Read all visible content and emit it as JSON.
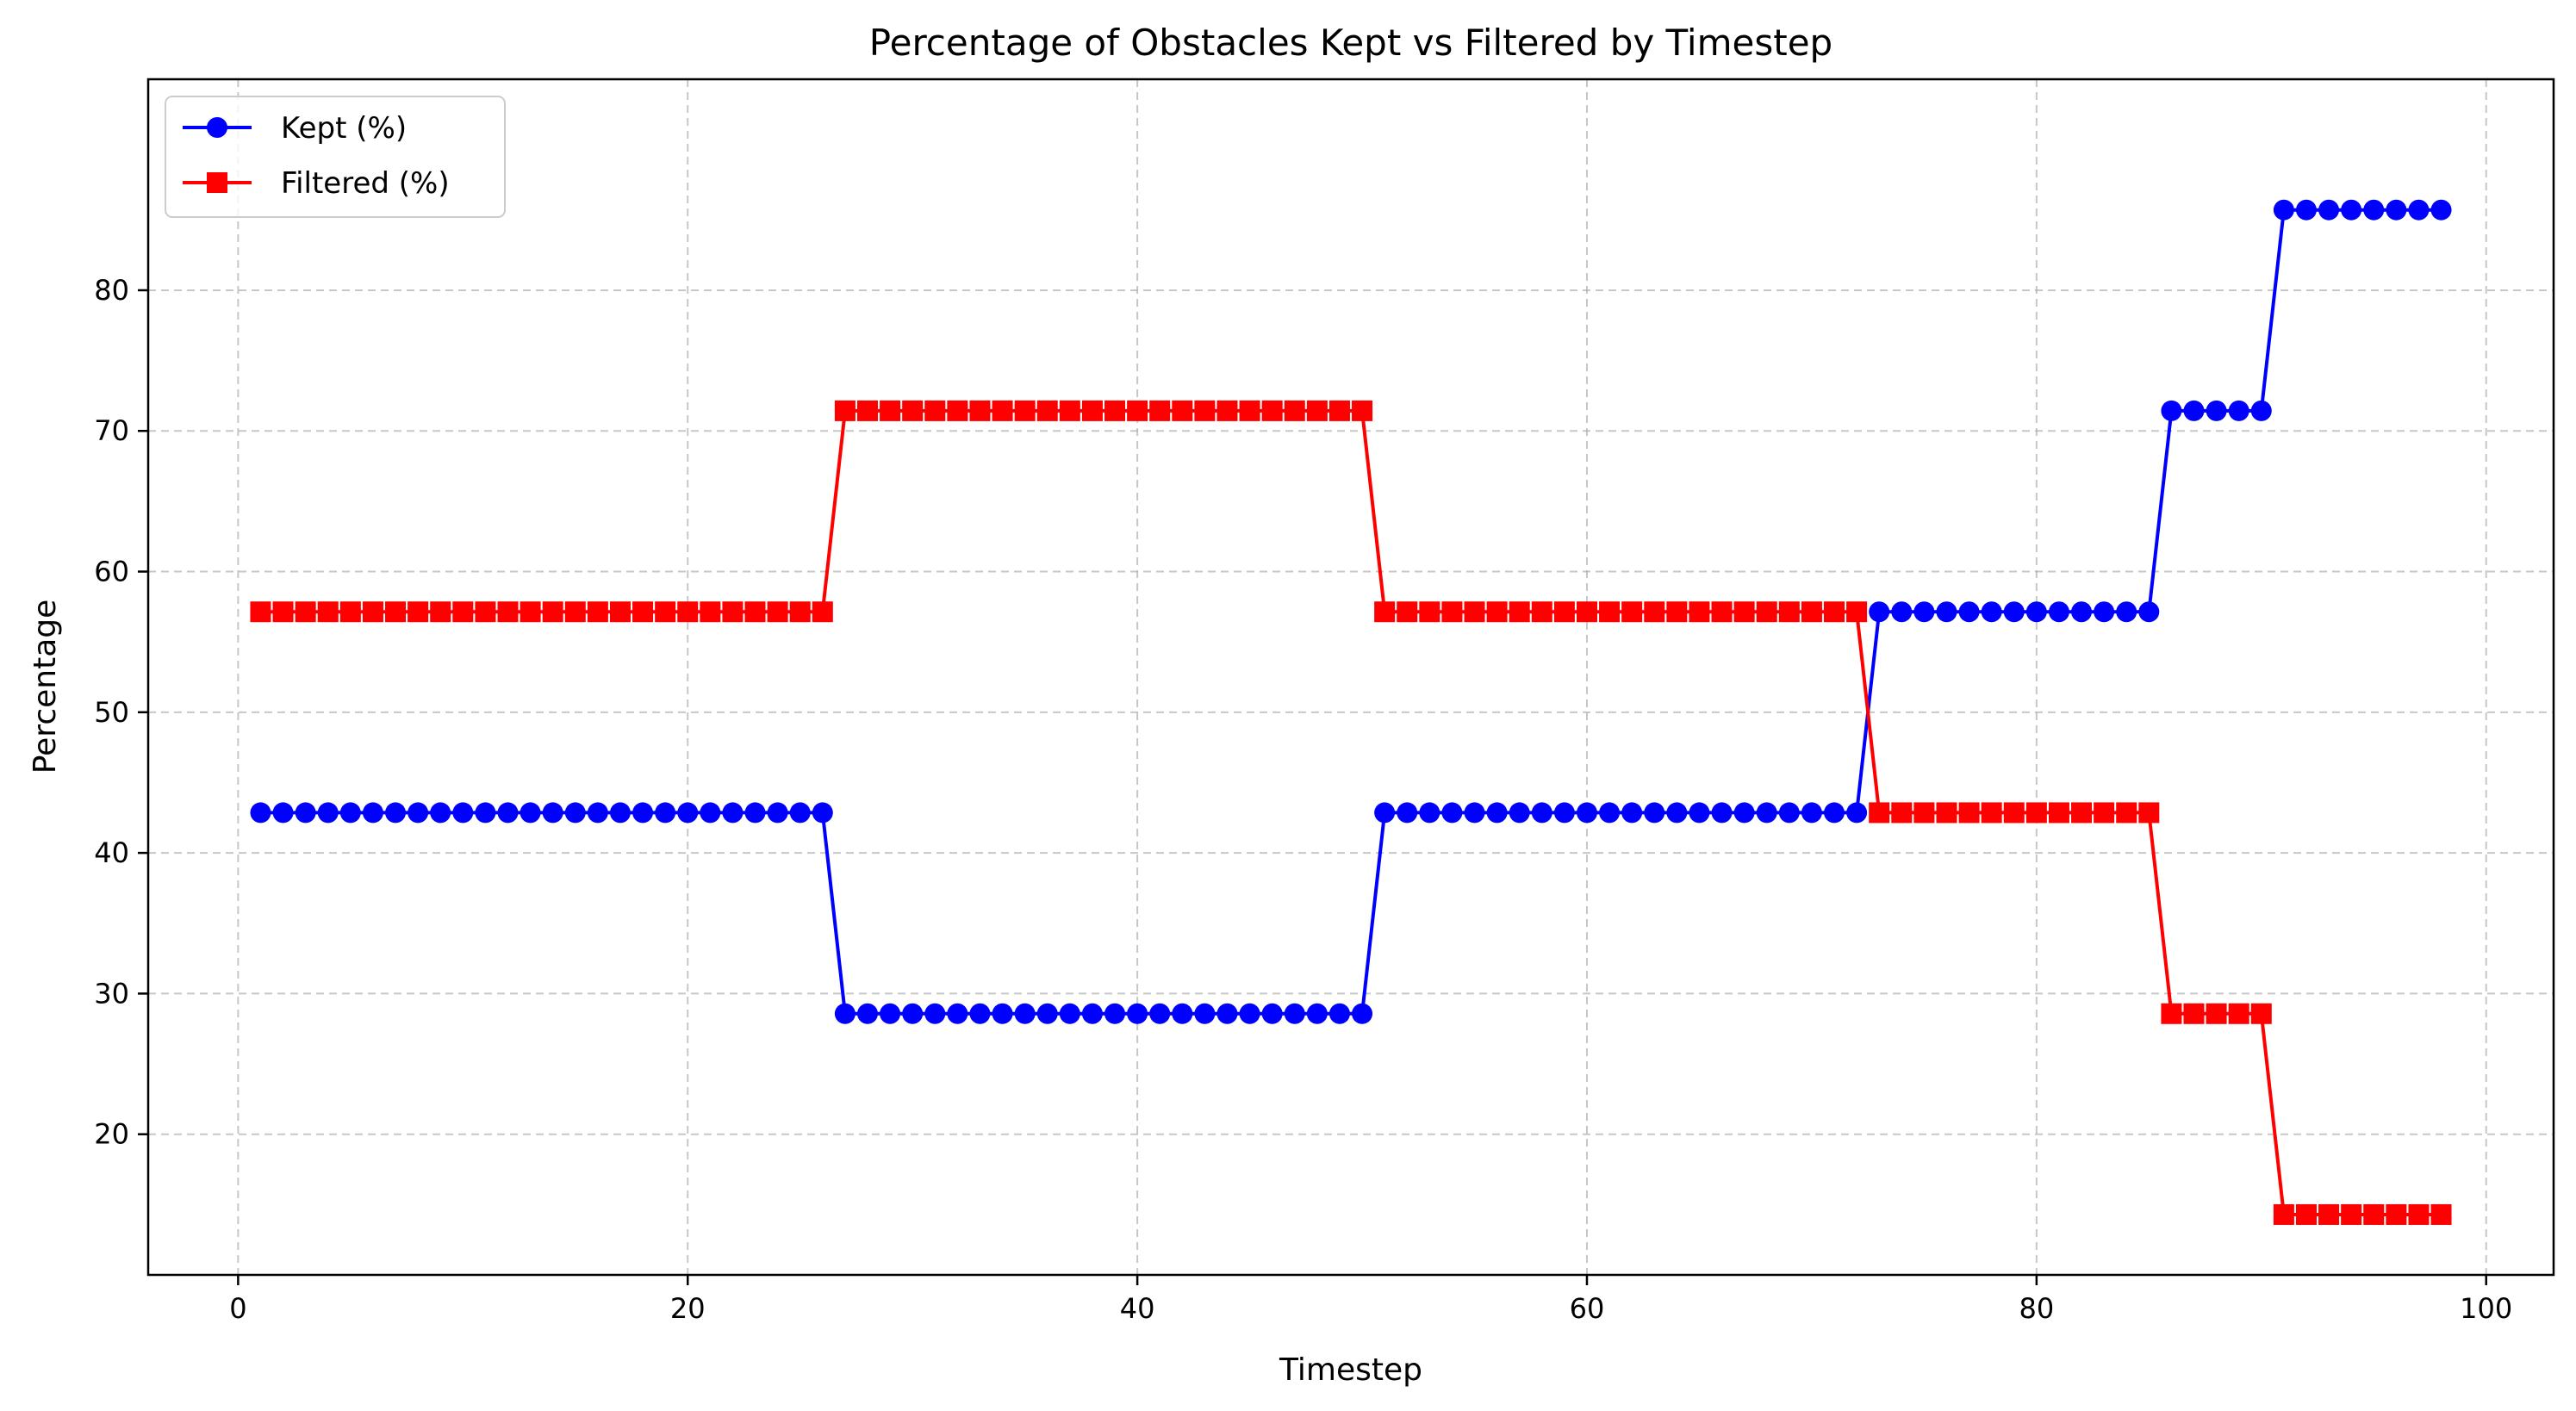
{
  "chart_data": {
    "type": "line",
    "title": "Percentage of Obstacles Kept vs Filtered by Timestep",
    "xlabel": "Timestep",
    "ylabel": "Percentage",
    "xlim": [
      -4,
      103
    ],
    "ylim": [
      10,
      95
    ],
    "xticks": [
      0,
      20,
      40,
      60,
      80,
      100
    ],
    "yticks": [
      20,
      30,
      40,
      50,
      60,
      70,
      80
    ],
    "grid": true,
    "legend_position": "top-left",
    "series": [
      {
        "name": "Kept (%)",
        "color": "#0000ff",
        "marker": "circle",
        "segments": [
          {
            "from": 1,
            "to": 26,
            "value": 42.86
          },
          {
            "from": 27,
            "to": 50,
            "value": 28.57
          },
          {
            "from": 51,
            "to": 72,
            "value": 42.86
          },
          {
            "from": 73,
            "to": 85,
            "value": 57.14
          },
          {
            "from": 86,
            "to": 90,
            "value": 71.43
          },
          {
            "from": 91,
            "to": 98,
            "value": 85.71
          }
        ]
      },
      {
        "name": "Filtered (%)",
        "color": "#ff0000",
        "marker": "square",
        "segments": [
          {
            "from": 1,
            "to": 26,
            "value": 57.14
          },
          {
            "from": 27,
            "to": 50,
            "value": 71.43
          },
          {
            "from": 51,
            "to": 72,
            "value": 57.14
          },
          {
            "from": 73,
            "to": 85,
            "value": 42.86
          },
          {
            "from": 86,
            "to": 90,
            "value": 28.57
          },
          {
            "from": 91,
            "to": 98,
            "value": 14.29
          }
        ]
      }
    ]
  }
}
